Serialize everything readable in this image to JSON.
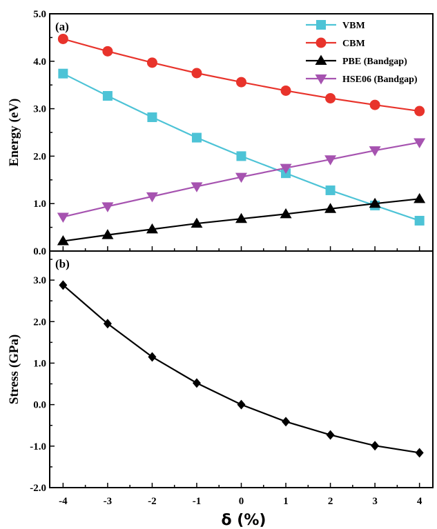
{
  "chart_data": [
    {
      "panel_label": "(a)",
      "type": "line",
      "xlabel": "",
      "ylabel": "Energy (eV)",
      "x": [
        -4,
        -3,
        -2,
        -1,
        0,
        1,
        2,
        3,
        4
      ],
      "xlim": [
        -4.3,
        4.3
      ],
      "ylim": [
        0.0,
        5.0
      ],
      "yticks": [
        0.0,
        1.0,
        2.0,
        3.0,
        4.0,
        5.0
      ],
      "ytick_labels": [
        "0.0",
        "1.0",
        "2.0",
        "3.0",
        "4.0",
        "5.0"
      ],
      "legend_position": "top-right",
      "series": [
        {
          "name": "VBM",
          "color": "#4dc3d6",
          "marker": "square",
          "values": [
            3.74,
            3.27,
            2.82,
            2.39,
            2.0,
            1.64,
            1.28,
            0.96,
            0.64
          ]
        },
        {
          "name": "CBM",
          "color": "#e8332b",
          "marker": "circle",
          "values": [
            4.47,
            4.21,
            3.97,
            3.75,
            3.56,
            3.38,
            3.22,
            3.08,
            2.95
          ]
        },
        {
          "name": "PBE (Bandgap)",
          "color": "#000000",
          "marker": "triangle-up",
          "values": [
            0.21,
            0.34,
            0.46,
            0.58,
            0.68,
            0.78,
            0.89,
            1.0,
            1.1
          ]
        },
        {
          "name": "HSE06 (Bandgap)",
          "color": "#a653b0",
          "marker": "triangle-down",
          "values": [
            0.72,
            0.94,
            1.15,
            1.36,
            1.56,
            1.75,
            1.93,
            2.12,
            2.29
          ]
        }
      ]
    },
    {
      "panel_label": "(b)",
      "type": "line",
      "xlabel": "δ (%)",
      "ylabel": "Stress (GPa)",
      "x": [
        -4,
        -3,
        -2,
        -1,
        0,
        1,
        2,
        3,
        4
      ],
      "xticks": [
        -4,
        -3,
        -2,
        -1,
        0,
        1,
        2,
        3,
        4
      ],
      "xtick_labels": [
        "-4",
        "-3",
        "-2",
        "-1",
        "0",
        "1",
        "2",
        "3",
        "4"
      ],
      "xlim": [
        -4.3,
        4.3
      ],
      "ylim": [
        -2.0,
        3.7
      ],
      "yticks": [
        -2.0,
        -1.0,
        0.0,
        1.0,
        2.0,
        3.0
      ],
      "ytick_labels": [
        "-2.0",
        "-1.0",
        "0.0",
        "1.0",
        "2.0",
        "3.0"
      ],
      "series": [
        {
          "color": "#000000",
          "marker": "diamond",
          "values": [
            2.88,
            1.95,
            1.15,
            0.52,
            0.0,
            -0.41,
            -0.73,
            -0.99,
            -1.16
          ]
        }
      ]
    }
  ]
}
